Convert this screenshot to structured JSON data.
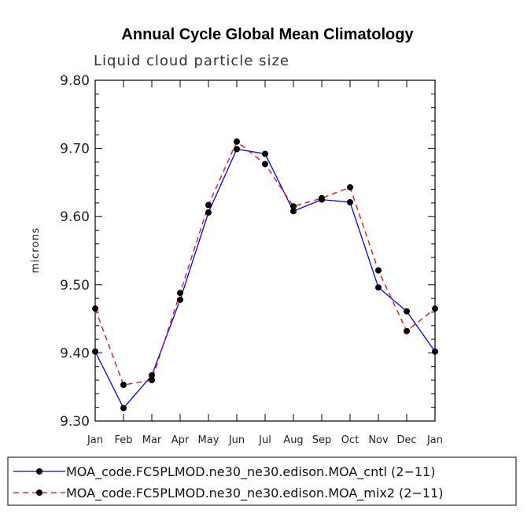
{
  "chart_data": {
    "type": "line",
    "title": "Annual Cycle Global Mean Climatology",
    "subtitle": "Liquid cloud particle size",
    "xlabel": "",
    "ylabel": "microns",
    "categories": [
      "Jan",
      "Feb",
      "Mar",
      "Apr",
      "May",
      "Jun",
      "Jul",
      "Aug",
      "Sep",
      "Oct",
      "Nov",
      "Dec",
      "Jan"
    ],
    "ylim": [
      9.3,
      9.8
    ],
    "yticks": [
      "9.30",
      "9.40",
      "9.50",
      "9.60",
      "9.70",
      "9.80"
    ],
    "legend_position": "bottom",
    "series": [
      {
        "name": "MOA_code.FC5PLMOD.ne30_ne30.edison.MOA_cntl (2−11)",
        "color": "#0000ff",
        "style": "solid",
        "values": [
          9.402,
          9.319,
          9.367,
          9.478,
          9.606,
          9.699,
          9.692,
          9.608,
          9.625,
          9.621,
          9.496,
          9.461,
          9.402
        ]
      },
      {
        "name": "MOA_code.FC5PLMOD.ne30_ne30.edison.MOA_mix2 (2−11)",
        "color": "#ff0000",
        "style": "dashed",
        "values": [
          9.465,
          9.353,
          9.36,
          9.488,
          9.617,
          9.71,
          9.677,
          9.615,
          9.627,
          9.643,
          9.521,
          9.432,
          9.465
        ]
      }
    ]
  }
}
